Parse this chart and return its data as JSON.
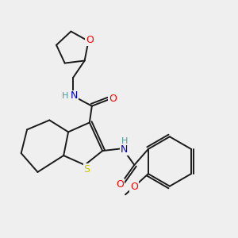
{
  "bg_color": "#efefef",
  "bond_color": "#1a1a1a",
  "S_color": "#c8c800",
  "O_color": "#ff0000",
  "N_color": "#0000cc",
  "H_color": "#4a9a9a",
  "font_size": 8.5,
  "line_width": 1.4,
  "xlim": [
    0,
    10
  ],
  "ylim": [
    0,
    10
  ]
}
